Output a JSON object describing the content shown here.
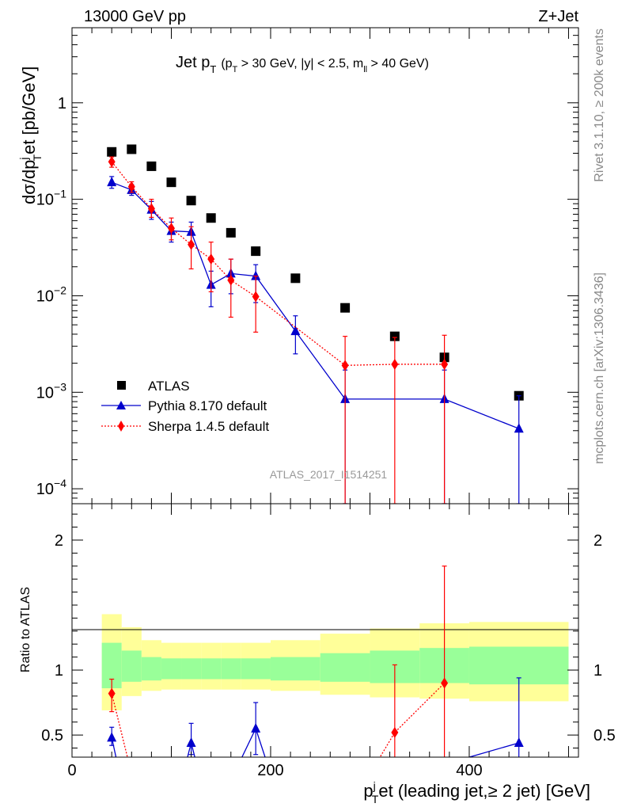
{
  "header": {
    "left": "13000 GeV pp",
    "right": "Z+Jet"
  },
  "side_labels": {
    "rivet": "Rivet 3.1.10, ≥ 200k events",
    "mcplots": "mcplots.cern.ch [arXiv:1306.3436]"
  },
  "chart_data": [
    {
      "type": "line",
      "panel": "main",
      "title": "Jet pT (pT > 30 GeV, |y| < 2.5, mll > 40 GeV)",
      "title_parts": {
        "main": "Jet p",
        "main_sub": "T",
        "open": "(p",
        "open_sub": "T",
        "cond_a": " > 30 GeV, |y| < 2.5, m",
        "cond_sub": "ll",
        "cond_b": " > 40 GeV)"
      },
      "ylabel": "dσ/dpjTet [pb/GeV]",
      "ylabel_parts": {
        "a": "dσ/dp",
        "sup": "j",
        "sub": "T",
        "b": "et [pb/GeV]"
      },
      "yscale": "log",
      "ylim": [
        7e-05,
        6
      ],
      "xlim": [
        0,
        510
      ],
      "ytick_labels": [
        {
          "value": 1,
          "base": "1",
          "exp": ""
        },
        {
          "value": 0.1,
          "base": "10",
          "exp": "−1"
        },
        {
          "value": 0.01,
          "base": "10",
          "exp": "−2"
        },
        {
          "value": 0.001,
          "base": "10",
          "exp": "−3"
        },
        {
          "value": 0.0001,
          "base": "10",
          "exp": "−4"
        }
      ],
      "watermark": "ATLAS_2017_I1514251",
      "legend": {
        "position": "lower-left",
        "entries": [
          "ATLAS",
          "Pythia 8.170 default",
          "Sherpa 1.4.5 default"
        ]
      },
      "series": [
        {
          "name": "ATLAS",
          "color": "#000000",
          "marker": "square",
          "x": [
            40,
            60,
            80,
            100,
            120,
            140,
            160,
            185,
            225,
            275,
            325,
            375,
            450
          ],
          "y": [
            0.31,
            0.33,
            0.22,
            0.15,
            0.097,
            0.064,
            0.045,
            0.029,
            0.0152,
            0.0075,
            0.0038,
            0.0023,
            0.00092
          ]
        },
        {
          "name": "Pythia 8.170 default",
          "color": "#0000cc",
          "marker": "triangle",
          "x": [
            40,
            60,
            80,
            100,
            120,
            140,
            160,
            185,
            225,
            275,
            375,
            450
          ],
          "y": [
            0.15,
            0.125,
            0.078,
            0.047,
            0.046,
            0.013,
            0.017,
            0.016,
            0.0043,
            0.00085,
            0.00085,
            0.00042
          ],
          "yerr_low": [
            0.13,
            0.11,
            0.062,
            0.036,
            0.034,
            0.0077,
            0.0105,
            0.0085,
            0.0025,
            7e-05,
            7e-05,
            7e-05
          ],
          "yerr_high": [
            0.172,
            0.142,
            0.095,
            0.058,
            0.058,
            0.018,
            0.024,
            0.021,
            0.0062,
            0.0017,
            0.0017,
            0.00092
          ]
        },
        {
          "name": "Sherpa 1.4.5 default",
          "color": "#ff0000",
          "marker": "diamond",
          "x": [
            40,
            60,
            80,
            100,
            120,
            140,
            160,
            185,
            275,
            325,
            375
          ],
          "y": [
            0.245,
            0.135,
            0.08,
            0.05,
            0.034,
            0.024,
            0.0145,
            0.0098,
            0.0019,
            0.00195,
            0.00195
          ],
          "yerr_low": [
            0.215,
            0.118,
            0.065,
            0.038,
            0.019,
            0.011,
            0.006,
            0.0042,
            7e-05,
            7e-05,
            7e-05
          ],
          "yerr_high": [
            0.275,
            0.152,
            0.1,
            0.064,
            0.052,
            0.036,
            0.024,
            0.016,
            0.0038,
            0.0037,
            0.0039
          ]
        }
      ]
    },
    {
      "type": "line",
      "panel": "ratio",
      "ylabel": "Ratio to ATLAS",
      "xlabel": "pjTet (leading jet,≥ 2 jet) [GeV]",
      "xlabel_parts": {
        "a": "p",
        "sup": "j",
        "sub": "T",
        "b": "et (leading jet,≥ 2 jet) [GeV]"
      },
      "xlim": [
        0,
        510
      ],
      "ylim": [
        0.33,
        2.28
      ],
      "xtick_labels": [
        "0",
        "200",
        "400"
      ],
      "xtick_values": [
        0,
        200,
        400
      ],
      "ytick_labels": [
        "0.5",
        "1",
        "2"
      ],
      "ytick_values": [
        0.5,
        1,
        2
      ],
      "bands": {
        "bin_edges": [
          30,
          50,
          70,
          90,
          110,
          130,
          150,
          170,
          200,
          250,
          300,
          350,
          400,
          500
        ],
        "inner_low": [
          0.86,
          0.91,
          0.92,
          0.93,
          0.93,
          0.93,
          0.93,
          0.93,
          0.92,
          0.91,
          0.9,
          0.9,
          0.89
        ],
        "inner_high": [
          1.21,
          1.15,
          1.1,
          1.09,
          1.09,
          1.09,
          1.09,
          1.09,
          1.1,
          1.13,
          1.15,
          1.17,
          1.18
        ],
        "outer_low": [
          0.69,
          0.8,
          0.84,
          0.85,
          0.85,
          0.85,
          0.85,
          0.85,
          0.84,
          0.81,
          0.79,
          0.78,
          0.76
        ],
        "outer_high": [
          1.43,
          1.33,
          1.23,
          1.21,
          1.21,
          1.21,
          1.21,
          1.21,
          1.23,
          1.28,
          1.32,
          1.36,
          1.37
        ]
      },
      "series": [
        {
          "name": "Pythia 8.170 default",
          "color": "#0000cc",
          "marker": "triangle",
          "x": [
            40,
            120,
            185,
            450
          ],
          "y": [
            0.48,
            0.44,
            0.55,
            0.44
          ],
          "yerr_low": [
            0.42,
            0.35,
            0.35,
            0.2
          ],
          "yerr_high": [
            0.56,
            0.59,
            0.75,
            0.94
          ],
          "line_x": [
            40,
            48,
            112,
            120,
            128,
            163,
            185,
            200,
            400,
            450
          ],
          "line_y": [
            0.48,
            0.2,
            0.2,
            0.44,
            0.2,
            0.2,
            0.55,
            0.2,
            0.33,
            0.44
          ]
        },
        {
          "name": "Sherpa 1.4.5 default",
          "color": "#ff0000",
          "marker": "diamond",
          "x": [
            40,
            325,
            375
          ],
          "y": [
            0.82,
            0.52,
            0.9
          ],
          "yerr_low": [
            0.68,
            0.1,
            0.1
          ],
          "yerr_high": [
            0.93,
            1.04,
            1.8
          ],
          "line_x": [
            40,
            60,
            300,
            325,
            375
          ],
          "line_y": [
            0.82,
            0.2,
            0.2,
            0.52,
            0.9
          ]
        }
      ]
    }
  ]
}
